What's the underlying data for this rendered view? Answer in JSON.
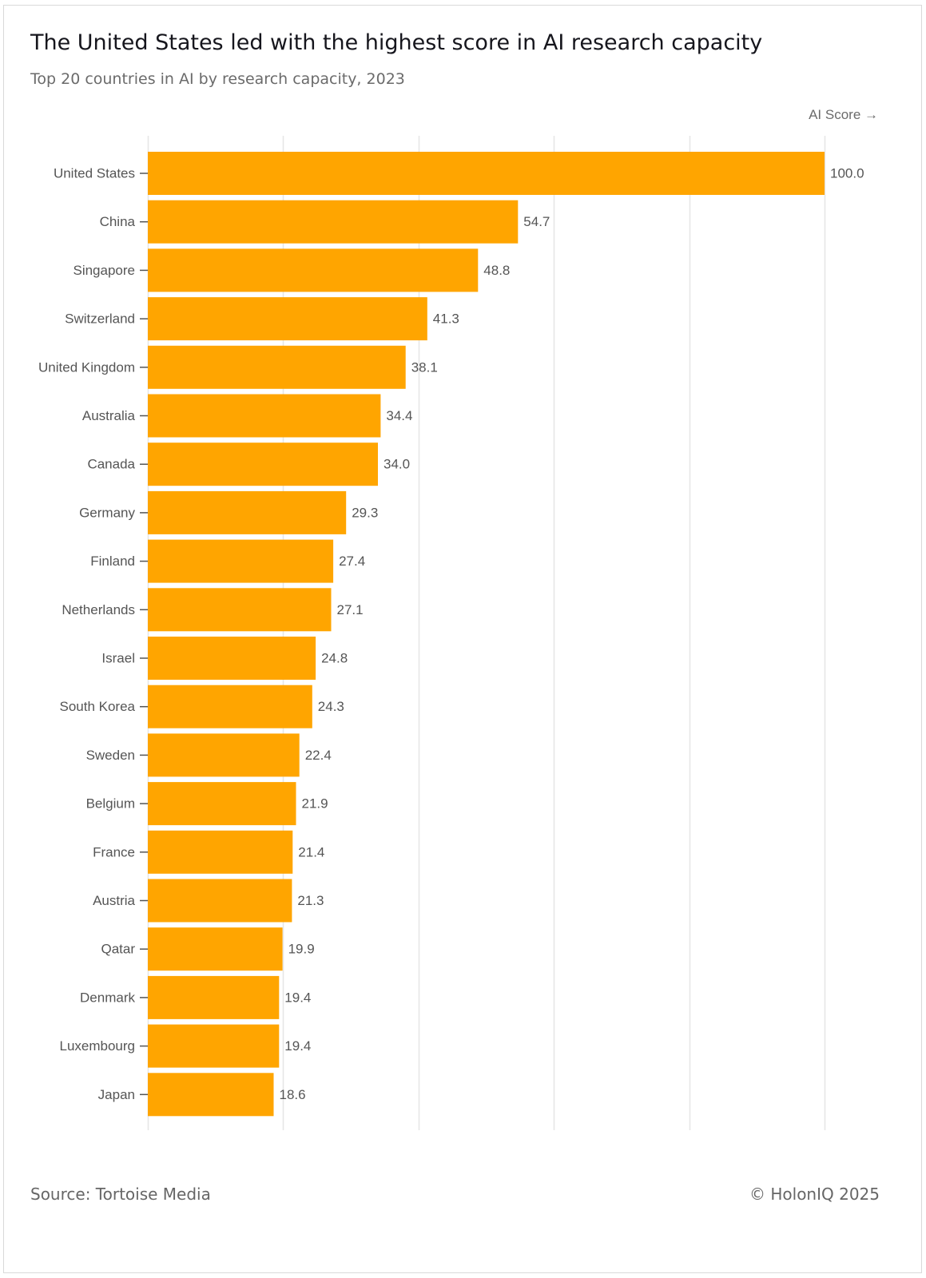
{
  "header": {
    "title": "The United States led with the highest score in AI research capacity",
    "subtitle": "Top 20 countries in AI by research capacity, 2023"
  },
  "footer": {
    "source": "Source: Tortoise Media",
    "copyright": "© HolonIQ 2025"
  },
  "colors": {
    "bar": "#FFA500",
    "grid": "#e6e6e6",
    "tick": "#555555",
    "label": "#555555"
  },
  "chart_data": {
    "type": "bar",
    "orientation": "horizontal",
    "title": "The United States led with the highest score in AI research capacity",
    "subtitle": "Top 20 countries in AI by research capacity, 2023",
    "xlabel": "AI Score →",
    "ylabel": "",
    "xlim": [
      0,
      100
    ],
    "grid": true,
    "gridlines": [
      0,
      20,
      40,
      60,
      80,
      100
    ],
    "categories": [
      "United States",
      "China",
      "Singapore",
      "Switzerland",
      "United Kingdom",
      "Australia",
      "Canada",
      "Germany",
      "Finland",
      "Netherlands",
      "Israel",
      "South Korea",
      "Sweden",
      "Belgium",
      "France",
      "Austria",
      "Qatar",
      "Denmark",
      "Luxembourg",
      "Japan"
    ],
    "values": [
      100.0,
      54.7,
      48.8,
      41.3,
      38.1,
      34.4,
      34.0,
      29.3,
      27.4,
      27.1,
      24.8,
      24.3,
      22.4,
      21.9,
      21.4,
      21.3,
      19.9,
      19.4,
      19.4,
      18.6
    ],
    "value_labels": [
      "100.0",
      "54.7",
      "48.8",
      "41.3",
      "38.1",
      "34.4",
      "34.0",
      "29.3",
      "27.4",
      "27.1",
      "24.8",
      "24.3",
      "22.4",
      "21.9",
      "21.4",
      "21.3",
      "19.9",
      "19.4",
      "19.4",
      "18.6"
    ]
  }
}
